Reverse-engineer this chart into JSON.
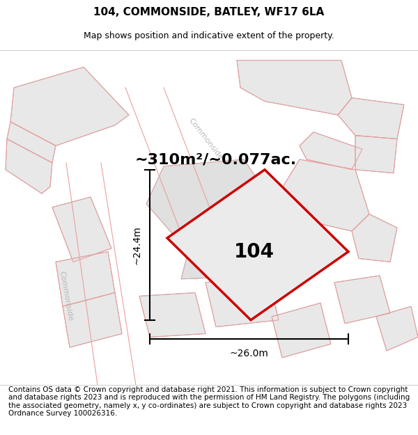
{
  "title": "104, COMMONSIDE, BATLEY, WF17 6LA",
  "subtitle": "Map shows position and indicative extent of the property.",
  "footer": "Contains OS data © Crown copyright and database right 2021. This information is subject to Crown copyright and database rights 2023 and is reproduced with the permission of HM Land Registry. The polygons (including the associated geometry, namely x, y co-ordinates) are subject to Crown copyright and database rights 2023 Ordnance Survey 100026316.",
  "area_text": "~310m²/~0.077ac.",
  "label": "104",
  "dim_width": "~26.0m",
  "dim_height": "~24.4m",
  "bg_color": "#ffffff",
  "plot_color_fill": "#ebebeb",
  "plot_color_edge": "#cc0000",
  "building_fill": "#e8e8e8",
  "building_edge_gray": "#aaaaaa",
  "building_edge_pink": "#e8a0a0",
  "title_fontsize": 11,
  "subtitle_fontsize": 9,
  "footer_fontsize": 7.5,
  "area_fontsize": 16,
  "label_fontsize": 20,
  "dim_fontsize": 10,
  "road_label_color": "#b8b8b8"
}
